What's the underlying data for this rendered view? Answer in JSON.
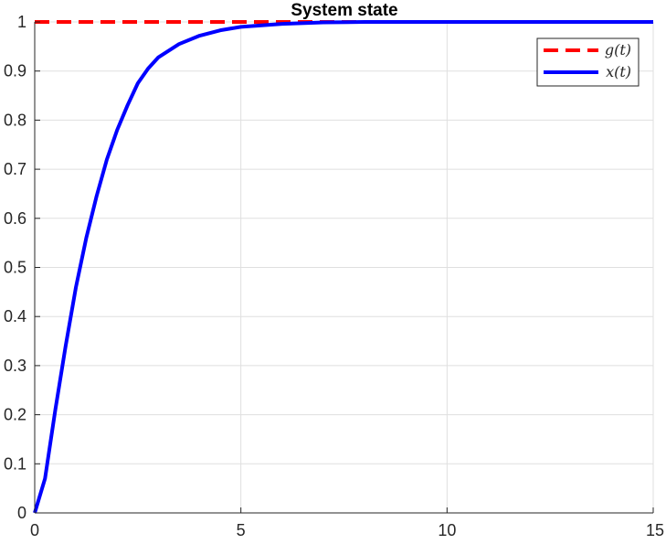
{
  "chart_data": {
    "type": "line",
    "title": "System state",
    "xlabel": "",
    "ylabel": "",
    "xlim": [
      0,
      15
    ],
    "ylim": [
      0,
      1
    ],
    "x_ticks": [
      0,
      5,
      10,
      15
    ],
    "y_ticks": [
      0,
      0.1,
      0.2,
      0.3,
      0.4,
      0.5,
      0.6,
      0.7,
      0.8,
      0.9,
      1
    ],
    "x_tick_labels": [
      "0",
      "5",
      "10",
      "15"
    ],
    "y_tick_labels": [
      "0",
      "0.1",
      "0.2",
      "0.3",
      "0.4",
      "0.5",
      "0.6",
      "0.7",
      "0.8",
      "0.9",
      "1"
    ],
    "grid": true,
    "legend_position": "top-right",
    "series": [
      {
        "name": "g(t)",
        "style": "dashed",
        "color": "#ff0000",
        "x": [
          0,
          15
        ],
        "y": [
          1,
          1
        ]
      },
      {
        "name": "x(t)",
        "style": "solid",
        "color": "#0000ff",
        "x": [
          0,
          0.25,
          0.5,
          0.75,
          1,
          1.25,
          1.5,
          1.75,
          2,
          2.25,
          2.5,
          2.75,
          3,
          3.5,
          4,
          4.5,
          5,
          6,
          7,
          8,
          10,
          12,
          15
        ],
        "y": [
          0,
          0.07,
          0.21,
          0.34,
          0.46,
          0.56,
          0.645,
          0.72,
          0.78,
          0.83,
          0.875,
          0.905,
          0.928,
          0.955,
          0.972,
          0.983,
          0.99,
          0.996,
          0.999,
          1,
          1,
          1,
          1
        ]
      }
    ]
  }
}
